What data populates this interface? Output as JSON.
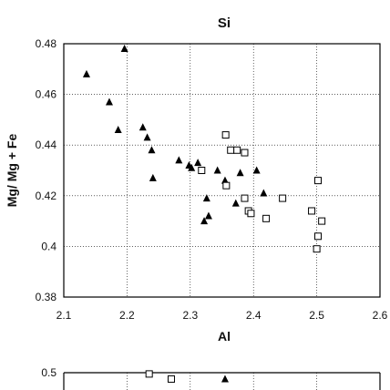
{
  "chart_data": [
    {
      "type": "scatter",
      "title": "Si",
      "xlabel": "Al",
      "ylabel": "Mg/ Mg + Fe",
      "xlim": [
        2.1,
        2.6
      ],
      "ylim": [
        0.38,
        0.48
      ],
      "xticks": [
        "2.1",
        "2.2",
        "2.3",
        "2.4",
        "2.5",
        "2.6"
      ],
      "yticks": [
        "0.38",
        "0.4",
        "0.42",
        "0.44",
        "0.46",
        "0.48"
      ],
      "grid": true,
      "series": [
        {
          "marker": "filled-triangle",
          "color": "#000000",
          "points": [
            [
              2.136,
              0.468
            ],
            [
              2.196,
              0.478
            ],
            [
              2.172,
              0.457
            ],
            [
              2.186,
              0.446
            ],
            [
              2.225,
              0.447
            ],
            [
              2.232,
              0.443
            ],
            [
              2.239,
              0.438
            ],
            [
              2.241,
              0.427
            ],
            [
              2.282,
              0.434
            ],
            [
              2.298,
              0.432
            ],
            [
              2.302,
              0.431
            ],
            [
              2.312,
              0.433
            ],
            [
              2.322,
              0.41
            ],
            [
              2.326,
              0.419
            ],
            [
              2.329,
              0.412
            ],
            [
              2.343,
              0.43
            ],
            [
              2.355,
              0.426
            ],
            [
              2.372,
              0.417
            ],
            [
              2.379,
              0.429
            ],
            [
              2.405,
              0.43
            ],
            [
              2.416,
              0.421
            ]
          ]
        },
        {
          "marker": "open-square",
          "color": "#000000",
          "points": [
            [
              2.356,
              0.444
            ],
            [
              2.357,
              0.424
            ],
            [
              2.364,
              0.438
            ],
            [
              2.374,
              0.438
            ],
            [
              2.386,
              0.437
            ],
            [
              2.318,
              0.43
            ],
            [
              2.386,
              0.419
            ],
            [
              2.392,
              0.414
            ],
            [
              2.396,
              0.413
            ],
            [
              2.42,
              0.411
            ],
            [
              2.446,
              0.419
            ],
            [
              2.492,
              0.414
            ],
            [
              2.502,
              0.426
            ],
            [
              2.508,
              0.41
            ],
            [
              2.502,
              0.404
            ],
            [
              2.5,
              0.399
            ]
          ]
        }
      ]
    },
    {
      "type": "scatter",
      "ytick_visible": "0.5",
      "series": [
        {
          "marker": "open-square",
          "points": [
            [
              2.235,
              0.499
            ],
            [
              2.27,
              0.495
            ]
          ]
        },
        {
          "marker": "filled-triangle",
          "points": [
            [
              2.355,
              0.495
            ]
          ]
        }
      ]
    }
  ]
}
